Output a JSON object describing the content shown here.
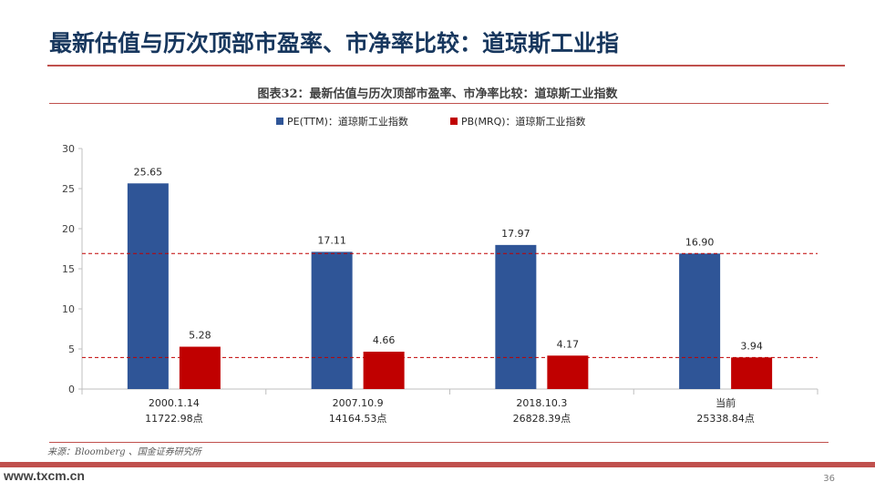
{
  "slide": {
    "title": "最新估值与历次顶部市盈率、市净率比较：道琼斯工业指",
    "figure_caption": "图表32：最新估值与历次顶部市盈率、市净率比较：道琼斯工业指数",
    "source": "来源：Bloomberg 、国金证券研究所",
    "page_number": "36",
    "watermark": "www.txcm.cn"
  },
  "colors": {
    "pe": "#2f5597",
    "pb": "#c00000",
    "accent": "#c0504d",
    "title": "#17375e"
  },
  "chart_data": {
    "type": "bar",
    "categories": [
      "2000.1.14",
      "2007.10.9",
      "2018.10.3",
      "当前"
    ],
    "category_sublabels": [
      "11722.98点",
      "14164.53点",
      "26828.39点",
      "25338.84点"
    ],
    "series": [
      {
        "name": "PE(TTM)：道琼斯工业指数",
        "values": [
          25.65,
          17.11,
          17.97,
          16.9
        ],
        "labels": [
          "25.65",
          "17.11",
          "17.97",
          "16.90"
        ],
        "color": "#2f5597"
      },
      {
        "name": "PB(MRQ)：道琼斯工业指数",
        "values": [
          5.28,
          4.66,
          4.17,
          3.94
        ],
        "labels": [
          "5.28",
          "4.66",
          "4.17",
          "3.94"
        ],
        "color": "#c00000"
      }
    ],
    "reference_lines": [
      {
        "value": 16.9,
        "style": "dashed",
        "color": "#c00000"
      },
      {
        "value": 3.94,
        "style": "dashed",
        "color": "#c00000"
      }
    ],
    "ylim": [
      0,
      30
    ],
    "yticks": [
      0,
      5,
      10,
      15,
      20,
      25,
      30
    ],
    "grid": false,
    "legend_position": "top-center"
  }
}
